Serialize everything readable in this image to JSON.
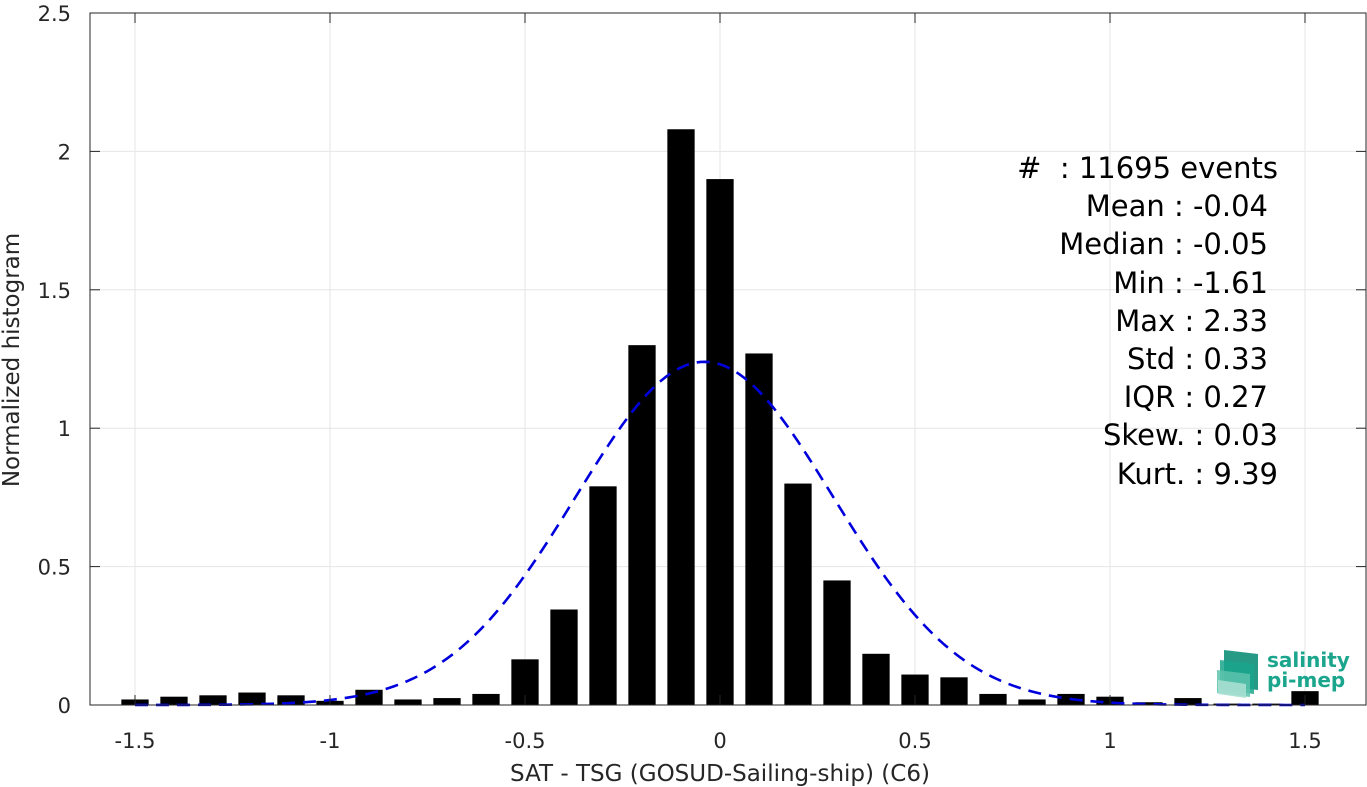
{
  "chart_data": {
    "type": "bar",
    "xlabel": "SAT - TSG (GOSUD-Sailing-ship) (C6)",
    "ylabel": "Normalized histogram",
    "xlim": [
      -1.6,
      1.6
    ],
    "ylim": [
      0,
      2.5
    ],
    "grid": true,
    "x_ticks": [
      -1.5,
      -1,
      -0.5,
      0,
      0.5,
      1,
      1.5
    ],
    "x_tick_labels": [
      "-1.5",
      "-1",
      "-0.5",
      "0",
      "0.5",
      "1",
      "1.5"
    ],
    "y_ticks": [
      0,
      0.5,
      1,
      1.5,
      2,
      2.5
    ],
    "y_tick_labels": [
      "0",
      "0.5",
      "1",
      "1.5",
      "2",
      "2.5"
    ],
    "bar_width": 0.07,
    "series": [
      {
        "kind": "bars",
        "color": "#000000",
        "x": [
          -1.5,
          -1.4,
          -1.3,
          -1.2,
          -1.1,
          -1.0,
          -0.9,
          -0.8,
          -0.7,
          -0.6,
          -0.5,
          -0.4,
          -0.3,
          -0.2,
          -0.1,
          0.0,
          0.1,
          0.2,
          0.3,
          0.4,
          0.5,
          0.6,
          0.7,
          0.8,
          0.9,
          1.0,
          1.1,
          1.2,
          1.3,
          1.4,
          1.5
        ],
        "values": [
          0.02,
          0.03,
          0.035,
          0.045,
          0.035,
          0.015,
          0.055,
          0.02,
          0.025,
          0.04,
          0.165,
          0.345,
          0.79,
          1.3,
          2.08,
          1.9,
          1.27,
          0.8,
          0.45,
          0.185,
          0.11,
          0.1,
          0.04,
          0.02,
          0.04,
          0.03,
          0.01,
          0.025,
          0.005,
          0.005,
          0.05
        ]
      },
      {
        "kind": "gaussian_fit",
        "color": "#0000dd",
        "line_style": "dashed",
        "mean": -0.04,
        "std": 0.33,
        "peak": 1.24
      }
    ],
    "annotations": {
      "header": "#  : 11695 events",
      "lines": [
        "Mean : -0.04",
        "Median : -0.05",
        "Min : -1.61",
        "Max : 2.33",
        "Std : 0.33",
        "IQR : 0.27",
        "Skew. : 0.03",
        "Kurt. : 9.39"
      ]
    }
  },
  "logo": {
    "line1": "salinity",
    "line2": "pi-mep"
  }
}
